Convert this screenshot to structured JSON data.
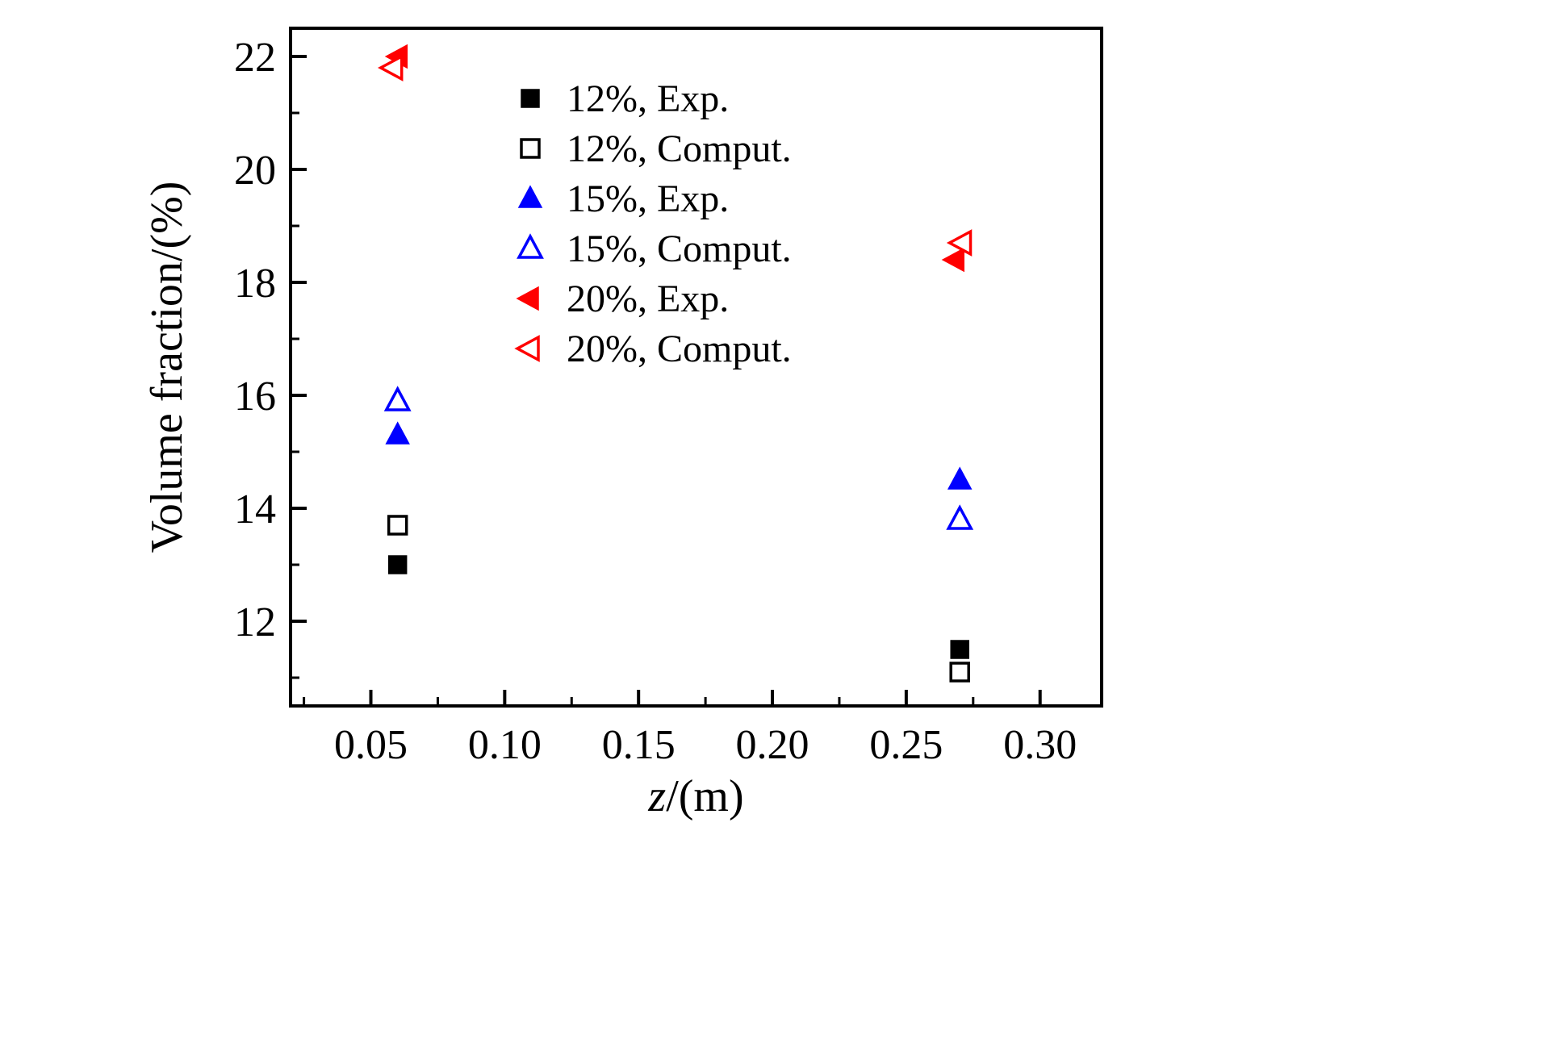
{
  "figure": {
    "background": "#ffffff"
  },
  "chart_data": {
    "type": "scatter",
    "title": "",
    "xlabel_italic": "z",
    "xlabel_rest": "/(m)",
    "ylabel": "Volume fraction/(%)",
    "xlim": [
      0.02,
      0.323
    ],
    "ylim": [
      10.5,
      22.5
    ],
    "grid": false,
    "x_ticks": [
      0.05,
      0.1,
      0.15,
      0.2,
      0.25,
      0.3
    ],
    "x_tick_labels": [
      "0.05",
      "0.10",
      "0.15",
      "0.20",
      "0.25",
      "0.30"
    ],
    "x_minor_ticks": [
      0.025,
      0.075,
      0.125,
      0.175,
      0.225,
      0.275
    ],
    "y_ticks": [
      12,
      14,
      16,
      18,
      20,
      22
    ],
    "y_tick_labels": [
      "12",
      "14",
      "16",
      "18",
      "20",
      "22"
    ],
    "y_minor_ticks": [
      11,
      13,
      15,
      17,
      19,
      21
    ],
    "legend_position": "upper-center-inside",
    "series": [
      {
        "name": "12%, Exp.",
        "marker": "square",
        "fill": "filled",
        "color": "#000000",
        "points": [
          [
            0.06,
            13.0
          ],
          [
            0.27,
            11.5
          ]
        ]
      },
      {
        "name": "12%, Comput.",
        "marker": "square",
        "fill": "open",
        "color": "#000000",
        "points": [
          [
            0.06,
            13.7
          ],
          [
            0.27,
            11.1
          ]
        ]
      },
      {
        "name": "15%, Exp.",
        "marker": "triangle-up",
        "fill": "filled",
        "color": "#0000ff",
        "points": [
          [
            0.06,
            15.3
          ],
          [
            0.27,
            14.5
          ]
        ]
      },
      {
        "name": "15%, Comput.",
        "marker": "triangle-up",
        "fill": "open",
        "color": "#0000ff",
        "points": [
          [
            0.06,
            15.9
          ],
          [
            0.27,
            13.8
          ]
        ]
      },
      {
        "name": "20%, Exp.",
        "marker": "triangle-left",
        "fill": "filled",
        "color": "#ff0000",
        "points": [
          [
            0.0605,
            22.0
          ],
          [
            0.2685,
            18.4
          ]
        ]
      },
      {
        "name": "20%, Comput.",
        "marker": "triangle-left",
        "fill": "open",
        "color": "#ff0000",
        "points": [
          [
            0.0585,
            21.8
          ],
          [
            0.271,
            18.7
          ]
        ]
      }
    ]
  }
}
